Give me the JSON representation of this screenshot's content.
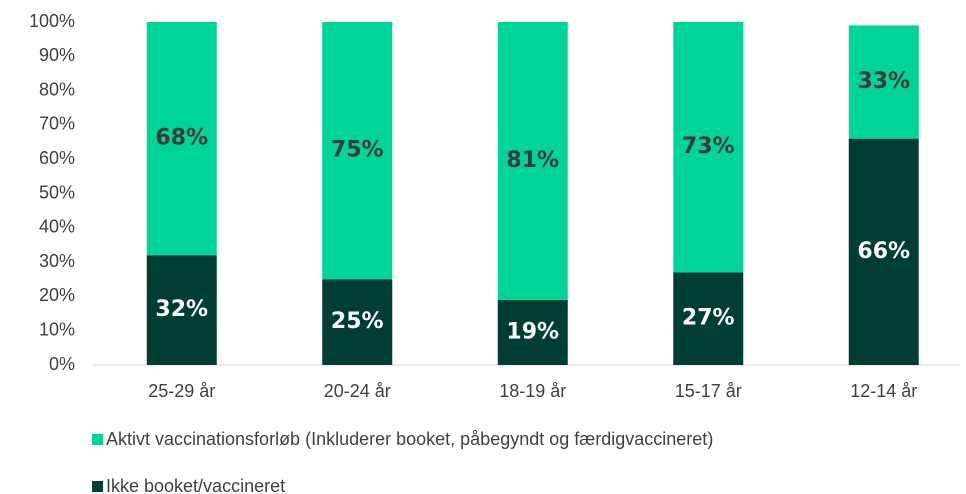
{
  "chart_data": {
    "type": "stacked_bar",
    "categories": [
      "25-29 år",
      "20-24 år",
      "18-19 år",
      "15-17 år",
      "12-14 år"
    ],
    "series": [
      {
        "name": "Ikke booket/vaccineret",
        "color": "#003d32",
        "values": [
          32,
          25,
          19,
          27,
          66
        ],
        "value_labels": [
          "32%",
          "25%",
          "19%",
          "27%",
          "66%"
        ]
      },
      {
        "name": "Aktivt vaccinationsforløb (Inkluderer booket, påbegyndt og færdigvaccineret)",
        "color": "#00d496",
        "values": [
          68,
          75,
          81,
          73,
          33
        ],
        "value_labels": [
          "68%",
          "75%",
          "81%",
          "73%",
          "33%"
        ]
      }
    ],
    "ylim": [
      0,
      100
    ],
    "yticks": [
      {
        "value": 0,
        "label": "0%"
      },
      {
        "value": 10,
        "label": "10%"
      },
      {
        "value": 20,
        "label": "20%"
      },
      {
        "value": 30,
        "label": "30%"
      },
      {
        "value": 40,
        "label": "40%"
      },
      {
        "value": 50,
        "label": "50%"
      },
      {
        "value": 60,
        "label": "60%"
      },
      {
        "value": 70,
        "label": "70%"
      },
      {
        "value": 80,
        "label": "80%"
      },
      {
        "value": 90,
        "label": "90%"
      },
      {
        "value": 100,
        "label": "100%"
      }
    ],
    "legend": "bottom-left"
  }
}
